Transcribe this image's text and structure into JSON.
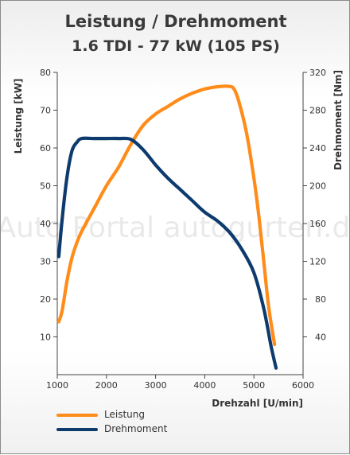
{
  "chart_data": {
    "type": "line",
    "title": "Leistung / Drehmoment",
    "subtitle": "1.6 TDI - 77 kW (105 PS)",
    "xlabel": "Drehzahl [U/min]",
    "ylabel_left": "Leistung [kW]",
    "ylabel_right": "Drehmoment [Nm]",
    "xlim": [
      1000,
      6000
    ],
    "ylim_left": [
      0,
      80
    ],
    "ylim_right": [
      0,
      320
    ],
    "x_ticks": [
      "1000",
      "2000",
      "3000",
      "4000",
      "5000",
      "6000"
    ],
    "y_ticks_left": [
      "10",
      "20",
      "30",
      "40",
      "50",
      "60",
      "70",
      "80"
    ],
    "y_ticks_right": [
      "40",
      "80",
      "120",
      "160",
      "200",
      "240",
      "280",
      "320"
    ],
    "grid": false,
    "legend_position": "bottom-left",
    "watermark": "Auto Portal autogurten.de",
    "series": [
      {
        "name": "Leistung",
        "axis": "left",
        "color": "#ff8c1a",
        "points": [
          [
            1030,
            14
          ],
          [
            1100,
            17
          ],
          [
            1200,
            25
          ],
          [
            1300,
            31
          ],
          [
            1400,
            35
          ],
          [
            1500,
            38
          ],
          [
            1750,
            44
          ],
          [
            2000,
            50
          ],
          [
            2250,
            55
          ],
          [
            2500,
            61
          ],
          [
            2750,
            66
          ],
          [
            3000,
            69
          ],
          [
            3250,
            71
          ],
          [
            3500,
            73
          ],
          [
            3750,
            74.5
          ],
          [
            4000,
            75.6
          ],
          [
            4250,
            76.2
          ],
          [
            4500,
            76.3
          ],
          [
            4600,
            75.5
          ],
          [
            4700,
            72
          ],
          [
            4850,
            64
          ],
          [
            5000,
            52
          ],
          [
            5100,
            42
          ],
          [
            5200,
            30
          ],
          [
            5300,
            18
          ],
          [
            5420,
            8
          ]
        ]
      },
      {
        "name": "Drehmoment",
        "axis": "right",
        "color": "#0d3b6e",
        "points": [
          [
            1030,
            125
          ],
          [
            1100,
            165
          ],
          [
            1200,
            210
          ],
          [
            1300,
            237
          ],
          [
            1400,
            246
          ],
          [
            1500,
            250
          ],
          [
            1750,
            250
          ],
          [
            2000,
            250
          ],
          [
            2250,
            250
          ],
          [
            2500,
            249
          ],
          [
            2750,
            238
          ],
          [
            3000,
            222
          ],
          [
            3250,
            208
          ],
          [
            3500,
            196
          ],
          [
            3750,
            184
          ],
          [
            4000,
            172
          ],
          [
            4250,
            163
          ],
          [
            4500,
            151
          ],
          [
            4750,
            133
          ],
          [
            5000,
            108
          ],
          [
            5200,
            70
          ],
          [
            5350,
            30
          ],
          [
            5450,
            7
          ]
        ]
      }
    ]
  }
}
